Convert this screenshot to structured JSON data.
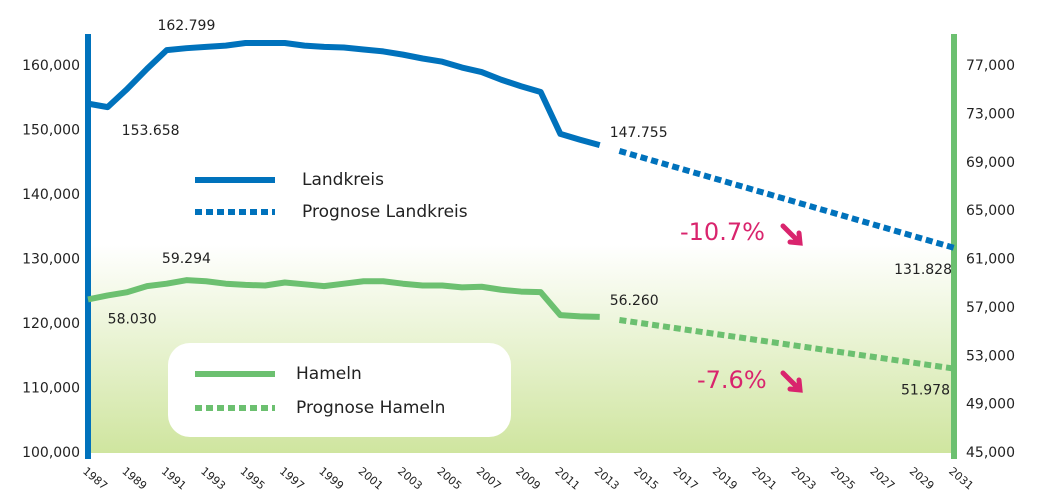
{
  "chart_data": {
    "type": "line",
    "xlim": [
      1987,
      2031
    ],
    "xticks": [
      1987,
      1989,
      1991,
      1993,
      1995,
      1997,
      1999,
      2001,
      2003,
      2005,
      2007,
      2009,
      2011,
      2013,
      2015,
      2017,
      2019,
      2021,
      2023,
      2025,
      2027,
      2029,
      2031
    ],
    "ylim": [
      100000,
      165000
    ],
    "yticks": [
      {
        "value": 100000,
        "label": "100,000"
      },
      {
        "value": 110000,
        "label": "110,000"
      },
      {
        "value": 120000,
        "label": "120,000"
      },
      {
        "value": 130000,
        "label": "130,000"
      },
      {
        "value": 140000,
        "label": "140,000"
      },
      {
        "value": 150000,
        "label": "150,000"
      },
      {
        "value": 160000,
        "label": "160,000"
      }
    ],
    "y2lim": [
      45000,
      79650
    ],
    "y2ticks": [
      {
        "value": 45000,
        "label": "45,000"
      },
      {
        "value": 49000,
        "label": "49,000"
      },
      {
        "value": 53000,
        "label": "53,000"
      },
      {
        "value": 57000,
        "label": "57,000"
      },
      {
        "value": 61000,
        "label": "61,000"
      },
      {
        "value": 65000,
        "label": "65,000"
      },
      {
        "value": 69000,
        "label": "69,000"
      },
      {
        "value": 73000,
        "label": "73,000"
      },
      {
        "value": 77000,
        "label": "77,000"
      }
    ],
    "series": [
      {
        "name": "Landkreis",
        "color": "#0072bc",
        "style": "solid",
        "x": [
          1987,
          1988,
          1989,
          1990,
          1991,
          1992,
          1993,
          1994,
          1995,
          1996,
          1997,
          1998,
          1999,
          2000,
          2001,
          2002,
          2003,
          2004,
          2005,
          2006,
          2007,
          2008,
          2009,
          2010,
          2011,
          2012,
          2013
        ],
        "values": [
          154200,
          153658,
          156500,
          159600,
          162500,
          162799,
          163000,
          163200,
          163600,
          163600,
          163600,
          163200,
          163000,
          162900,
          162600,
          162300,
          161800,
          161200,
          160700,
          159800,
          159100,
          157900,
          156900,
          156000,
          149500,
          148600,
          147755
        ],
        "value_labels": [
          null,
          "153.658",
          null,
          null,
          null,
          "162.799",
          null,
          null,
          null,
          null,
          null,
          null,
          null,
          null,
          null,
          null,
          null,
          null,
          null,
          null,
          null,
          null,
          null,
          null,
          null,
          null,
          "147.755"
        ]
      },
      {
        "name": "Prognose Landkreis",
        "color": "#0072bc",
        "style": "dotted",
        "x": [
          2014,
          2031
        ],
        "values": [
          146860,
          131828
        ],
        "value_labels": [
          null,
          "131.828"
        ]
      },
      {
        "name": "Hameln",
        "color": "#6cc070",
        "style": "solid",
        "axis": "y2",
        "x": [
          1987,
          1988,
          1989,
          1990,
          1991,
          1992,
          1993,
          1994,
          1995,
          1996,
          1997,
          1998,
          1999,
          2000,
          2001,
          2002,
          2003,
          2004,
          2005,
          2006,
          2007,
          2008,
          2009,
          2010,
          2011,
          2012,
          2013
        ],
        "values": [
          57700,
          58030,
          58300,
          58800,
          59000,
          59294,
          59200,
          59000,
          58900,
          58850,
          59100,
          58950,
          58800,
          59000,
          59200,
          59200,
          59000,
          58850,
          58850,
          58700,
          58750,
          58500,
          58350,
          58300,
          56400,
          56300,
          56260
        ],
        "value_labels": [
          null,
          "58.030",
          null,
          null,
          null,
          "59.294",
          null,
          null,
          null,
          null,
          null,
          null,
          null,
          null,
          null,
          null,
          null,
          null,
          null,
          null,
          null,
          null,
          null,
          null,
          null,
          null,
          "56.260"
        ]
      },
      {
        "name": "Prognose Hameln",
        "color": "#6cc070",
        "style": "dotted",
        "axis": "y2",
        "x": [
          2014,
          2031
        ],
        "values": [
          56000,
          51978
        ],
        "value_labels": [
          null,
          "51.978"
        ]
      }
    ],
    "annotations": [
      "-10.7%",
      "-7.6%"
    ]
  }
}
